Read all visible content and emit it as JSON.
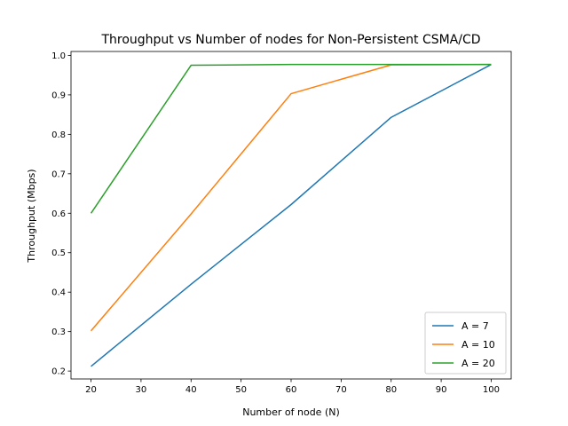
{
  "chart_data": {
    "type": "line",
    "title": "Throughput vs Number of nodes for Non-Persistent CSMA/CD",
    "xlabel": "Number of node (N)",
    "ylabel": "Throughput (Mbps)",
    "x": [
      20,
      40,
      60,
      80,
      100
    ],
    "xlim": [
      16,
      104
    ],
    "ylim": [
      0.18,
      1.01
    ],
    "xticks": [
      20,
      30,
      40,
      50,
      60,
      70,
      80,
      90,
      100
    ],
    "yticks": [
      0.2,
      0.3,
      0.4,
      0.5,
      0.6,
      0.7,
      0.8,
      0.9,
      1.0
    ],
    "ytick_labels": [
      "0.2",
      "0.3",
      "0.4",
      "0.5",
      "0.6",
      "0.7",
      "0.8",
      "0.9",
      "1.0"
    ],
    "grid": false,
    "legend_position": "bottom-right",
    "series": [
      {
        "name": "A = 7",
        "color": "#1f77b4",
        "values": [
          0.212,
          0.42,
          0.622,
          0.843,
          0.977
        ]
      },
      {
        "name": "A = 10",
        "color": "#ff7f0e",
        "values": [
          0.302,
          0.598,
          0.903,
          0.976,
          0.977
        ]
      },
      {
        "name": "A = 20",
        "color": "#2ca02c",
        "values": [
          0.6,
          0.975,
          0.977,
          0.977,
          0.977
        ]
      }
    ]
  }
}
